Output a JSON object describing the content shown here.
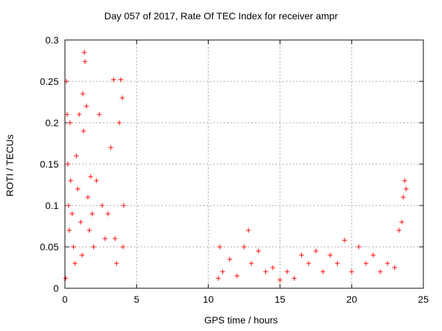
{
  "chart_data": {
    "type": "scatter",
    "title": "Day 057 of 2017, Rate Of TEC Index for receiver ampr",
    "xlabel": "GPS time / hours",
    "ylabel": "ROTI / TECUs",
    "xlim": [
      0,
      25
    ],
    "ylim": [
      0,
      0.3
    ],
    "xticks": [
      "0",
      "5",
      "10",
      "15",
      "20",
      "25"
    ],
    "yticks": [
      "0",
      "0.05",
      "0.1",
      "0.15",
      "0.2",
      "0.25",
      "0.3"
    ],
    "grid": true,
    "marker": "plus",
    "color": "#ff0000",
    "series": [
      {
        "points": [
          [
            0.05,
            0.012
          ],
          [
            0.1,
            0.25
          ],
          [
            0.15,
            0.21
          ],
          [
            0.2,
            0.15
          ],
          [
            0.25,
            0.1
          ],
          [
            0.3,
            0.07
          ],
          [
            0.35,
            0.2
          ],
          [
            0.4,
            0.13
          ],
          [
            0.5,
            0.09
          ],
          [
            0.6,
            0.05
          ],
          [
            0.7,
            0.03
          ],
          [
            0.8,
            0.16
          ],
          [
            0.9,
            0.12
          ],
          [
            1.0,
            0.21
          ],
          [
            1.1,
            0.08
          ],
          [
            1.2,
            0.04
          ],
          [
            1.25,
            0.235
          ],
          [
            1.3,
            0.19
          ],
          [
            1.35,
            0.285
          ],
          [
            1.4,
            0.274
          ],
          [
            1.5,
            0.22
          ],
          [
            1.6,
            0.11
          ],
          [
            1.7,
            0.07
          ],
          [
            1.8,
            0.135
          ],
          [
            1.9,
            0.09
          ],
          [
            2.0,
            0.05
          ],
          [
            2.2,
            0.13
          ],
          [
            2.4,
            0.21
          ],
          [
            2.6,
            0.1
          ],
          [
            2.8,
            0.06
          ],
          [
            3.0,
            0.09
          ],
          [
            3.2,
            0.17
          ],
          [
            3.4,
            0.252
          ],
          [
            3.5,
            0.06
          ],
          [
            3.6,
            0.03
          ],
          [
            3.8,
            0.2
          ],
          [
            3.9,
            0.252
          ],
          [
            4.0,
            0.23
          ],
          [
            4.05,
            0.05
          ],
          [
            4.1,
            0.1
          ],
          [
            10.7,
            0.012
          ],
          [
            10.8,
            0.05
          ],
          [
            11.0,
            0.02
          ],
          [
            11.5,
            0.035
          ],
          [
            12.0,
            0.015
          ],
          [
            12.5,
            0.05
          ],
          [
            12.8,
            0.07
          ],
          [
            13.0,
            0.03
          ],
          [
            13.5,
            0.045
          ],
          [
            14.0,
            0.02
          ],
          [
            14.5,
            0.025
          ],
          [
            15.0,
            0.01
          ],
          [
            15.5,
            0.02
          ],
          [
            16.0,
            0.012
          ],
          [
            16.5,
            0.04
          ],
          [
            17.0,
            0.03
          ],
          [
            17.5,
            0.045
          ],
          [
            18.0,
            0.02
          ],
          [
            18.5,
            0.04
          ],
          [
            19.0,
            0.03
          ],
          [
            19.5,
            0.058
          ],
          [
            20.0,
            0.02
          ],
          [
            20.5,
            0.05
          ],
          [
            21.0,
            0.03
          ],
          [
            21.5,
            0.04
          ],
          [
            22.0,
            0.02
          ],
          [
            22.5,
            0.03
          ],
          [
            23.0,
            0.025
          ],
          [
            23.3,
            0.07
          ],
          [
            23.5,
            0.08
          ],
          [
            23.6,
            0.11
          ],
          [
            23.7,
            0.13
          ],
          [
            23.8,
            0.12
          ]
        ]
      }
    ]
  }
}
